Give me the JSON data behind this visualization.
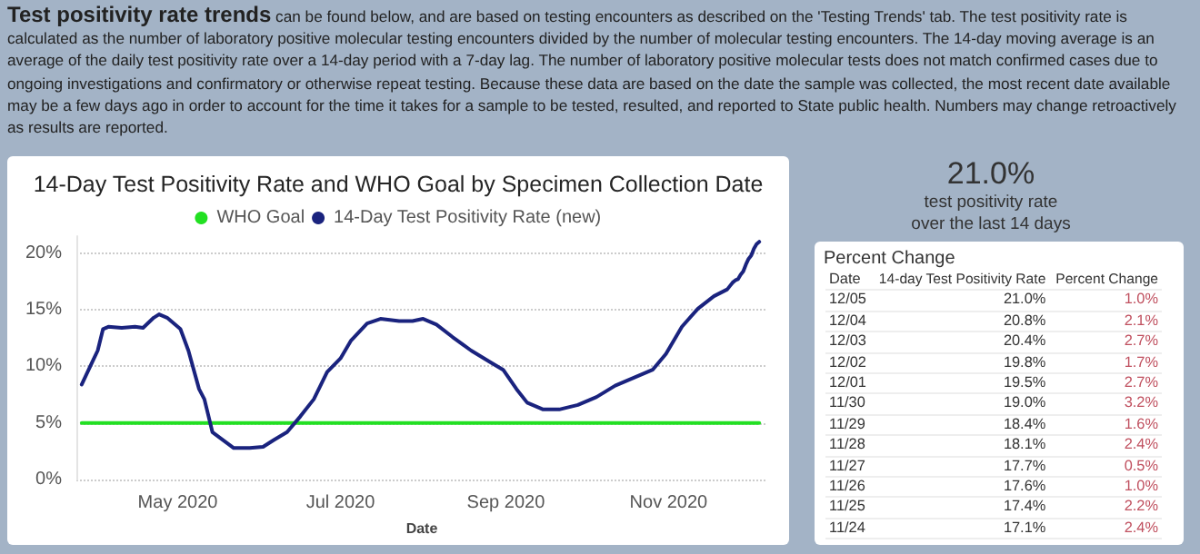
{
  "chart_data": [
    {
      "type": "other",
      "title": "Test positivity rate trends",
      "annotations": [
        "can be found below, and are based on testing encounters as described on the 'Testing Trends' tab.  The test positivity rate is calculated as the number of laboratory positive molecular testing encounters divided by the number of molecular testing encounters.  The 14-day moving average is an average of the daily test positivity rate over a 14-day period with a 7-day lag.  The number of laboratory positive molecular tests does not match confirmed cases due to ongoing investigations and confirmatory or otherwise repeat testing.  Because these data are based on the date the sample was collected, the most recent date available may be a few days ago in order to account for the time it takes for a sample to be tested, resulted, and reported to State public health.  Numbers may change retroactively as results are reported."
      ]
    },
    {
      "type": "line",
      "title": "14-Day Test Positivity Rate and WHO Goal by Specimen Collection Date",
      "xlabel": "Date",
      "legend": "top",
      "grid": "y",
      "marker": "none",
      "line_style": "solid",
      "xlim": [
        "2020-03-24",
        "2020-12-08"
      ],
      "ylim": [
        0,
        21.5
      ],
      "xticks": [
        {
          "value": "2020-05-01",
          "label": "May 2020"
        },
        {
          "value": "2020-07-01",
          "label": "Jul 2020"
        },
        {
          "value": "2020-09-01",
          "label": "Sep 2020"
        },
        {
          "value": "2020-11-01",
          "label": "Nov 2020"
        }
      ],
      "yticks": [
        {
          "value": 0,
          "label": "0%"
        },
        {
          "value": 5,
          "label": "5%"
        },
        {
          "value": 10,
          "label": "10%"
        },
        {
          "value": 15,
          "label": "15%"
        },
        {
          "value": 20,
          "label": "20%"
        }
      ],
      "series": [
        {
          "name": "WHO Goal",
          "color": "#22e022",
          "x": [
            "2020-03-26",
            "2020-12-05"
          ],
          "values": [
            5,
            5
          ]
        },
        {
          "name": "14-Day Test Positivity Rate (new)",
          "color": "#1a237e",
          "x": [
            "2020-03-26",
            "2020-03-30",
            "2020-04-01",
            "2020-04-03",
            "2020-04-05",
            "2020-04-10",
            "2020-04-15",
            "2020-04-18",
            "2020-04-22",
            "2020-04-24",
            "2020-04-27",
            "2020-05-02",
            "2020-05-05",
            "2020-05-09",
            "2020-05-11",
            "2020-05-14",
            "2020-05-18",
            "2020-05-22",
            "2020-05-28",
            "2020-06-02",
            "2020-06-06",
            "2020-06-11",
            "2020-06-16",
            "2020-06-21",
            "2020-06-26",
            "2020-07-01",
            "2020-07-05",
            "2020-07-11",
            "2020-07-16",
            "2020-07-23",
            "2020-07-28",
            "2020-08-01",
            "2020-08-06",
            "2020-08-12",
            "2020-08-19",
            "2020-08-26",
            "2020-08-31",
            "2020-09-05",
            "2020-09-09",
            "2020-09-15",
            "2020-09-21",
            "2020-09-28",
            "2020-10-05",
            "2020-10-12",
            "2020-10-19",
            "2020-10-26",
            "2020-10-31",
            "2020-11-06",
            "2020-11-12",
            "2020-11-18",
            "2020-11-23",
            "2020-11-24",
            "2020-11-25",
            "2020-11-26",
            "2020-11-27",
            "2020-11-28",
            "2020-11-29",
            "2020-11-30",
            "2020-12-01",
            "2020-12-02",
            "2020-12-03",
            "2020-12-04",
            "2020-12-05"
          ],
          "values": [
            8.4,
            10.4,
            11.4,
            13.3,
            13.5,
            13.4,
            13.5,
            13.4,
            14.3,
            14.6,
            14.3,
            13.3,
            11.4,
            8.0,
            7.1,
            4.2,
            3.5,
            2.8,
            2.8,
            2.9,
            3.5,
            4.2,
            5.6,
            7.1,
            9.5,
            10.7,
            12.3,
            13.8,
            14.2,
            14.0,
            14.0,
            14.2,
            13.7,
            12.6,
            11.4,
            10.4,
            9.7,
            8.0,
            6.8,
            6.2,
            6.2,
            6.6,
            7.3,
            8.3,
            9.0,
            9.7,
            11.1,
            13.5,
            15.1,
            16.2,
            16.8,
            17.1,
            17.4,
            17.6,
            17.7,
            18.1,
            18.4,
            19.0,
            19.5,
            19.8,
            20.4,
            20.8,
            21.0
          ]
        }
      ]
    },
    {
      "type": "other",
      "title": "21.0%",
      "subtitle": "test positivity rate over the last 14 days"
    },
    {
      "type": "other",
      "title": "Percent Change",
      "xlabel": "Date",
      "categories": [
        "12/05",
        "12/04",
        "12/03",
        "12/02",
        "12/01",
        "11/30",
        "11/29",
        "11/28",
        "11/27",
        "11/26",
        "11/25",
        "11/24"
      ],
      "series": [
        {
          "name": "14-day Test Positivity Rate",
          "values": [
            21.0,
            20.8,
            20.4,
            19.8,
            19.5,
            19.0,
            18.4,
            18.1,
            17.7,
            17.6,
            17.4,
            17.1
          ],
          "value_labels": [
            "21.0%",
            "20.8%",
            "20.4%",
            "19.8%",
            "19.5%",
            "19.0%",
            "18.4%",
            "18.1%",
            "17.7%",
            "17.6%",
            "17.4%",
            "17.1%"
          ]
        },
        {
          "name": "Percent Change",
          "values": [
            1.0,
            2.1,
            2.7,
            1.7,
            2.7,
            3.2,
            1.6,
            2.4,
            0.5,
            1.0,
            2.2,
            2.4
          ],
          "value_labels": [
            "1.0%",
            "2.1%",
            "2.7%",
            "1.7%",
            "2.7%",
            "3.2%",
            "1.6%",
            "2.4%",
            "0.5%",
            "1.0%",
            "2.2%",
            "2.4%"
          ]
        }
      ]
    }
  ]
}
